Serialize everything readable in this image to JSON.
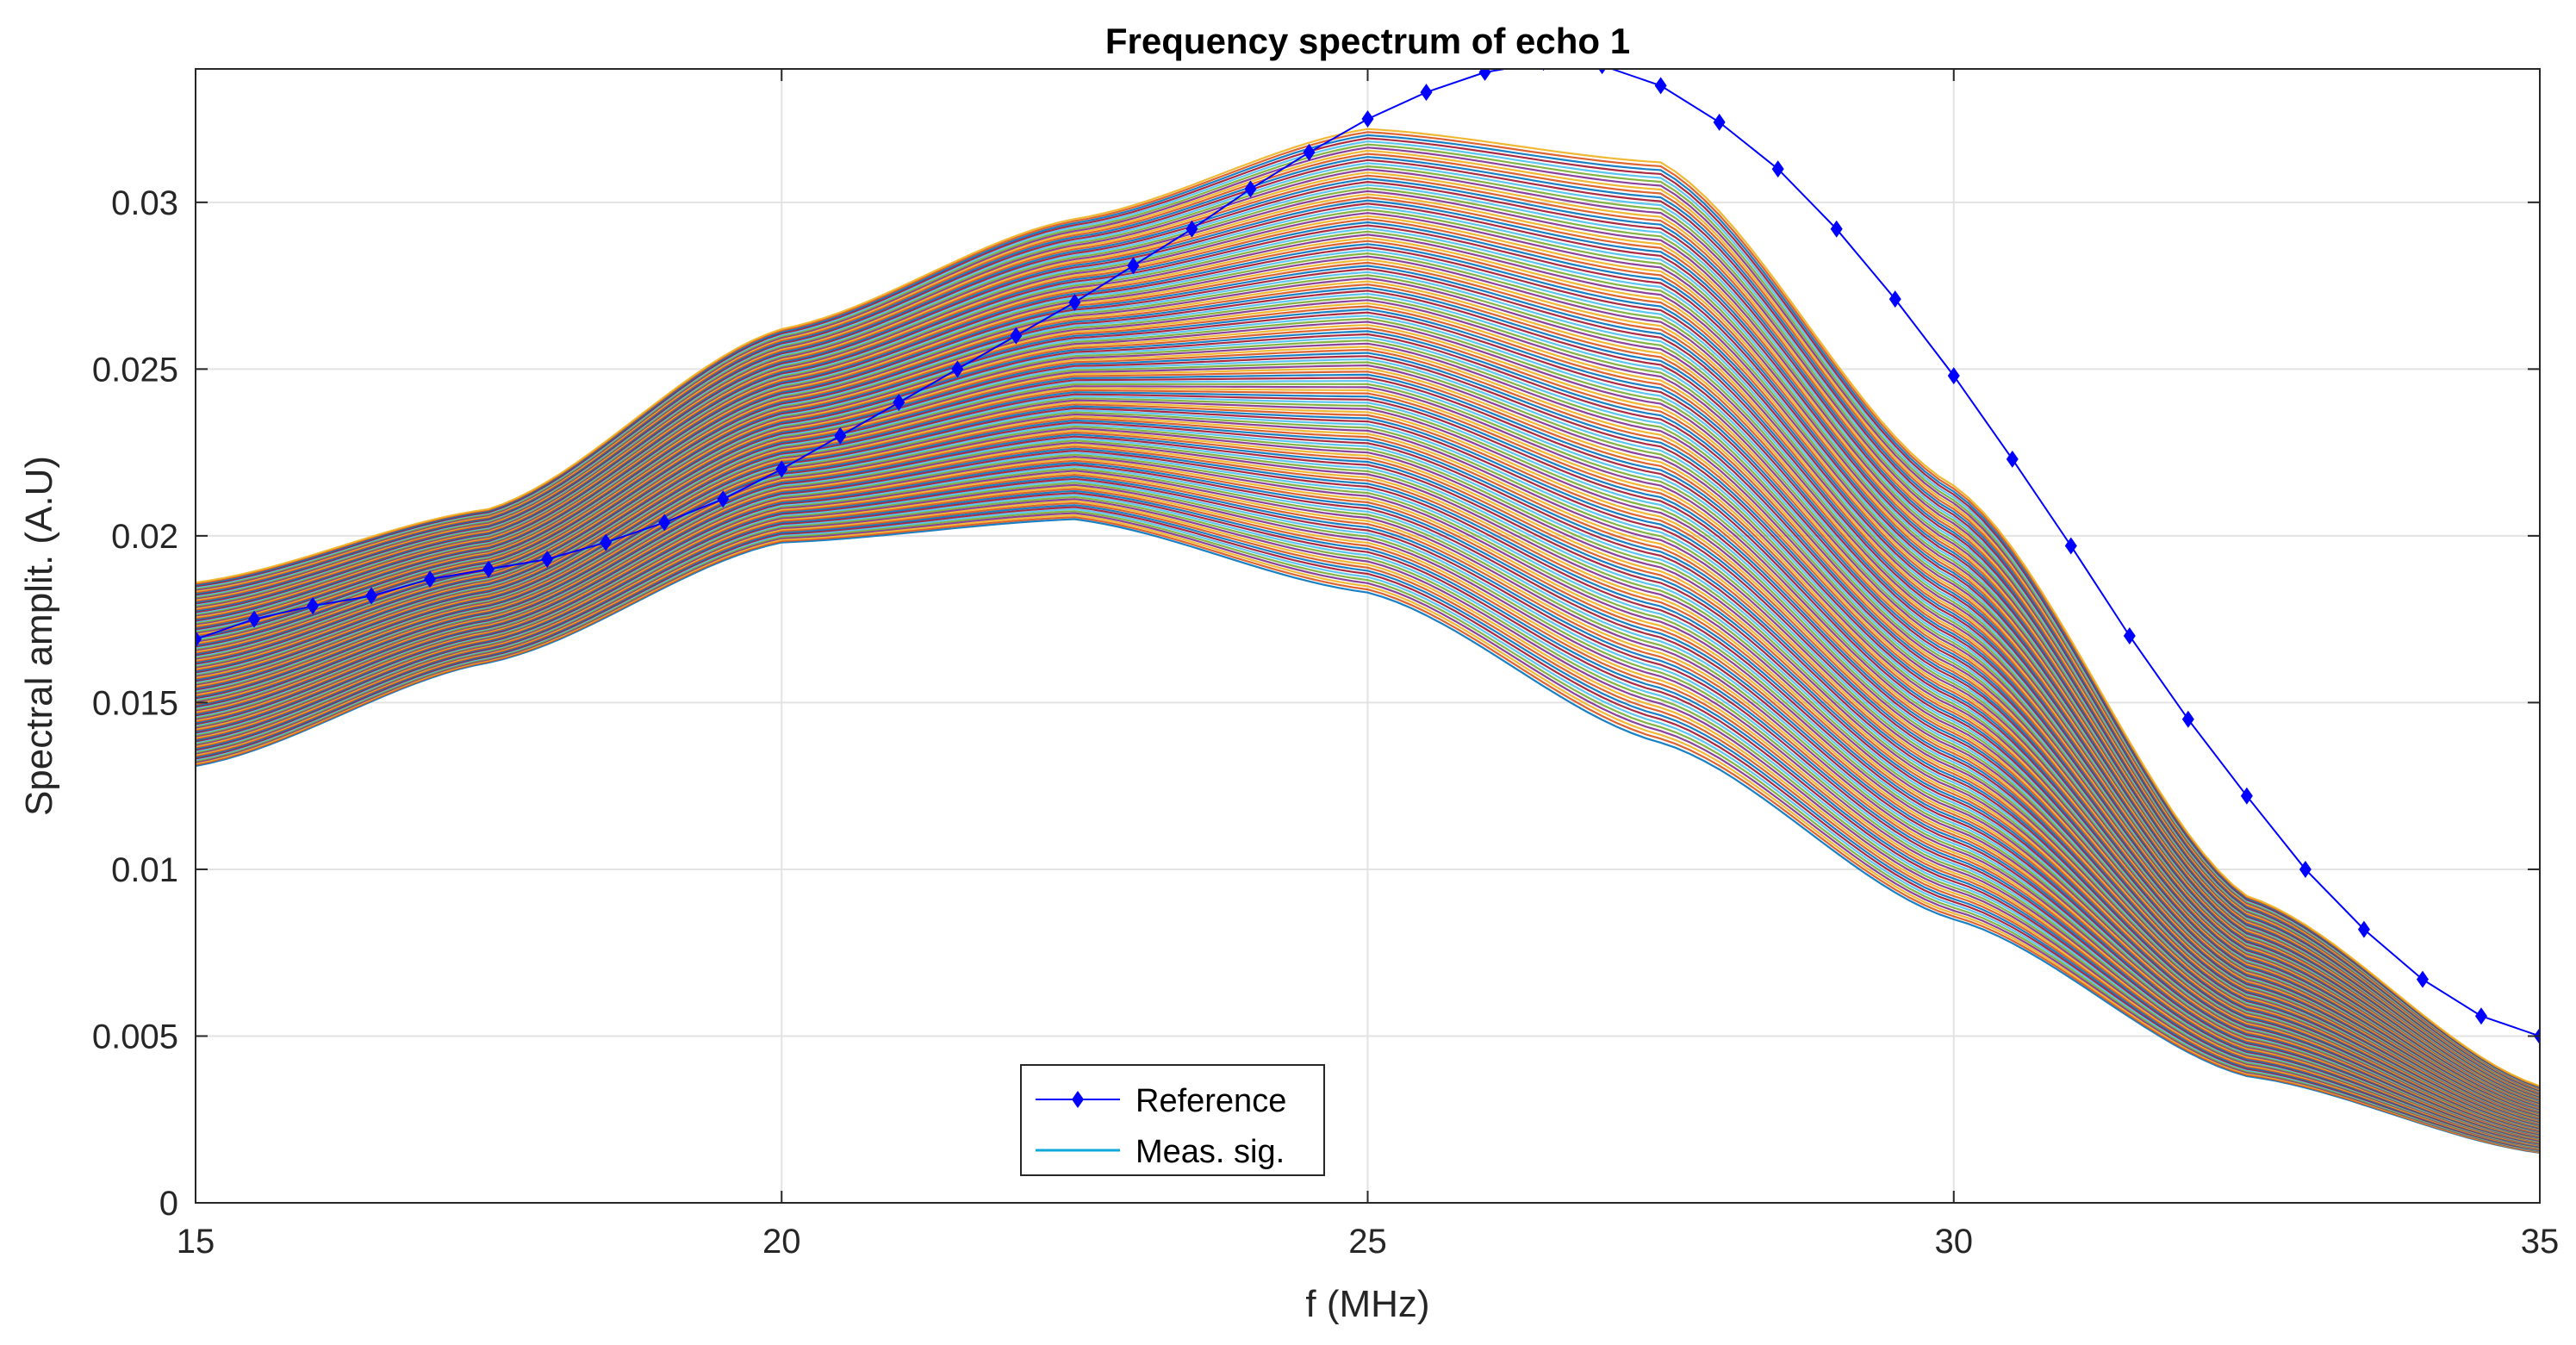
{
  "chart_data": {
    "type": "line",
    "title": "Frequency spectrum of echo 1",
    "xlabel": "f (MHz)",
    "ylabel": "Spectral amplit. (A.U)",
    "xlim": [
      15,
      35
    ],
    "ylim": [
      0,
      0.034
    ],
    "grid": true,
    "xticks": [
      15,
      20,
      25,
      30,
      35
    ],
    "xtick_labels": [
      "15",
      "20",
      "25",
      "30",
      "35"
    ],
    "yticks": [
      0,
      0.005,
      0.01,
      0.015,
      0.02,
      0.025,
      0.03
    ],
    "ytick_labels": [
      "0",
      "0.005",
      "0.01",
      "0.015",
      "0.02",
      "0.025",
      "0.03"
    ],
    "legend": {
      "placement": "bottom-center",
      "entries": [
        "Reference",
        "Meas. sig."
      ]
    },
    "series": [
      {
        "name": "Reference",
        "color": "#0000ff",
        "marker": "diamond",
        "x": [
          15,
          15.5,
          16,
          16.5,
          17,
          17.5,
          18,
          18.5,
          19,
          19.5,
          20,
          20.5,
          21,
          21.5,
          22,
          22.5,
          23,
          23.5,
          24,
          24.5,
          25,
          25.5,
          26,
          26.5,
          27,
          27.5,
          28,
          28.5,
          29,
          29.5,
          30,
          30.5,
          31,
          31.5,
          32,
          32.5,
          33,
          33.5,
          34,
          34.5,
          35
        ],
        "values": [
          0.0169,
          0.0175,
          0.0179,
          0.0182,
          0.0187,
          0.019,
          0.0193,
          0.0198,
          0.0204,
          0.0211,
          0.022,
          0.023,
          0.024,
          0.025,
          0.026,
          0.027,
          0.0281,
          0.0292,
          0.0304,
          0.0315,
          0.0325,
          0.0333,
          0.0339,
          0.0342,
          0.0341,
          0.0335,
          0.0324,
          0.031,
          0.0292,
          0.0271,
          0.0248,
          0.0223,
          0.0197,
          0.017,
          0.0145,
          0.0122,
          0.01,
          0.0082,
          0.0067,
          0.0056,
          0.005
        ]
      },
      {
        "name": "Meas. sig.",
        "color": "#0fa9d8",
        "envelope_x": [
          15,
          17.5,
          20,
          22.5,
          25,
          27.5,
          30,
          32.5,
          35
        ],
        "lower_curve": [
          0.0131,
          0.0162,
          0.0198,
          0.0205,
          0.0183,
          0.0138,
          0.0085,
          0.0038,
          0.0015
        ],
        "upper_curve": [
          0.0186,
          0.0208,
          0.0262,
          0.0295,
          0.0322,
          0.0312,
          0.0215,
          0.0092,
          0.0035
        ],
        "count_note": "many overlapping measured spectra"
      }
    ]
  }
}
